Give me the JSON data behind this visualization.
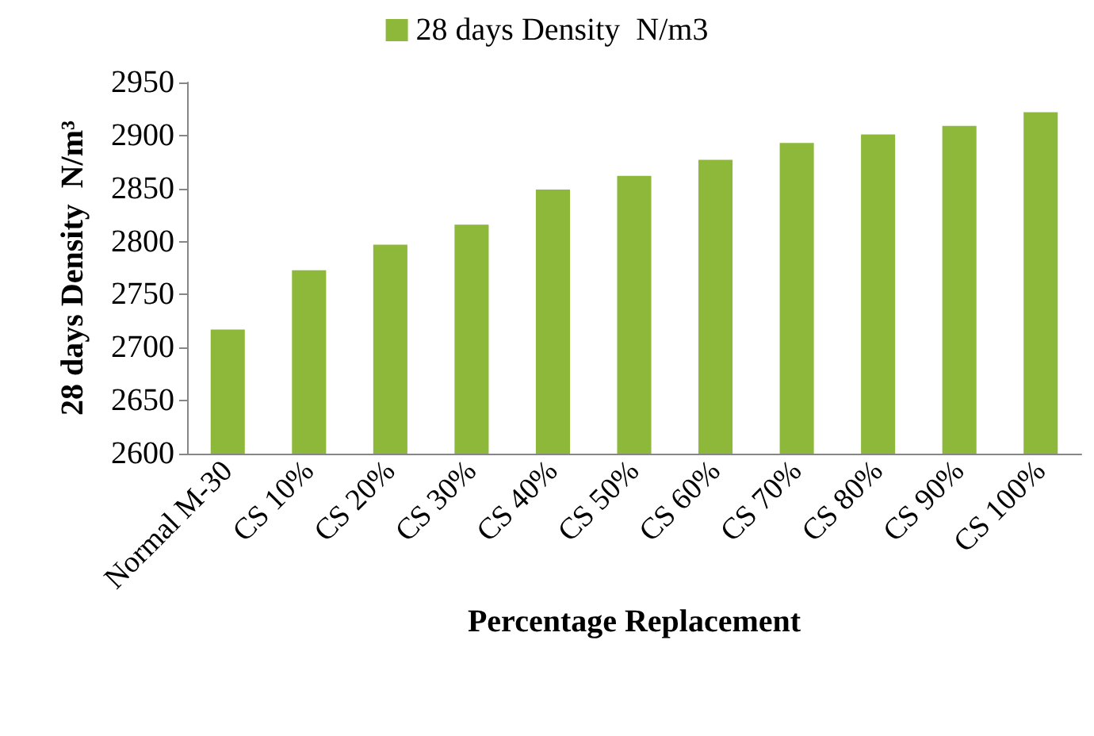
{
  "chart_data": {
    "type": "bar",
    "xlabel": "Percentage Replacement",
    "ylabel": "28 days Density  N/m³",
    "categories": [
      "Normal M-30",
      "CS 10%",
      "CS 20%",
      "CS 30%",
      "CS 40%",
      "CS 50%",
      "CS 60%",
      "CS 70%",
      "CS 80%",
      "CS 90%",
      "CS 100%"
    ],
    "series": [
      {
        "name": "28 days Density  N/m3",
        "color": "#8db83a",
        "values": [
          2717,
          2773,
          2797,
          2816,
          2849,
          2862,
          2877,
          2893,
          2901,
          2909,
          2922
        ]
      }
    ],
    "ylim": [
      2600,
      2950
    ],
    "yticks": [
      2600,
      2650,
      2700,
      2750,
      2800,
      2850,
      2900,
      2950
    ],
    "grid": false,
    "legend": "top"
  }
}
